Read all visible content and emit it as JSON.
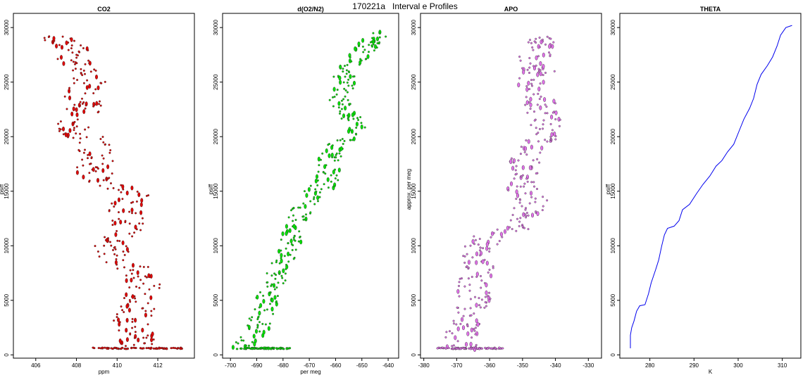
{
  "title": "170221a   Interval e Profiles",
  "colors": {
    "co2": "#e00000",
    "o2n2": "#00e000",
    "apo": "#e070e8",
    "theta": "#0000ee",
    "marker_edge": "#303030"
  },
  "chart_data": [
    {
      "type": "scatter",
      "title": "CO2",
      "xlabel": "ppm",
      "ylabel": "psiff",
      "xlim": [
        404.9,
        413.8
      ],
      "ylim": [
        -300,
        31300
      ],
      "xticks": [
        406,
        408,
        410,
        412
      ],
      "yticks": [
        0,
        5000,
        10000,
        15000,
        20000,
        25000,
        30000
      ],
      "profile": [
        [
          406.6,
          29200
        ],
        [
          407.6,
          28500
        ],
        [
          407.9,
          27500
        ],
        [
          408.1,
          26300
        ],
        [
          408.9,
          25200
        ],
        [
          407.9,
          24000
        ],
        [
          408.6,
          22900
        ],
        [
          408.0,
          21800
        ],
        [
          407.9,
          20600
        ],
        [
          408.8,
          19600
        ],
        [
          409.1,
          18200
        ],
        [
          408.7,
          17100
        ],
        [
          409.1,
          16000
        ],
        [
          410.8,
          14800
        ],
        [
          410.4,
          13400
        ],
        [
          410.6,
          12200
        ],
        [
          410.3,
          11000
        ],
        [
          409.6,
          9900
        ],
        [
          410.1,
          8700
        ],
        [
          411.1,
          7500
        ],
        [
          411.3,
          6300
        ],
        [
          411.1,
          5100
        ],
        [
          410.9,
          3800
        ],
        [
          410.6,
          2700
        ],
        [
          411.1,
          1600
        ],
        [
          411.0,
          800
        ]
      ],
      "spread": 0.9,
      "surface": {
        "y": 600,
        "x_range": [
          408.8,
          413.2
        ]
      }
    },
    {
      "type": "scatter",
      "title": "d(O2/N2)",
      "xlabel": "per meg",
      "ylabel": "psiff",
      "xlim": [
        -703,
        -636
      ],
      "ylim": [
        -300,
        31300
      ],
      "xticks": [
        -700,
        -690,
        -680,
        -670,
        -660,
        -650,
        -640
      ],
      "yticks": [
        0,
        5000,
        10000,
        15000,
        20000,
        25000,
        30000
      ],
      "profile": [
        [
          -697,
          600
        ],
        [
          -690,
          1800
        ],
        [
          -689,
          3000
        ],
        [
          -687,
          4300
        ],
        [
          -685,
          5700
        ],
        [
          -683,
          7000
        ],
        [
          -681,
          8200
        ],
        [
          -679,
          9500
        ],
        [
          -677,
          10700
        ],
        [
          -675,
          12000
        ],
        [
          -672,
          13400
        ],
        [
          -670,
          14700
        ],
        [
          -663,
          15800
        ],
        [
          -663,
          16900
        ],
        [
          -662,
          18200
        ],
        [
          -659,
          19500
        ],
        [
          -652,
          20700
        ],
        [
          -654,
          21900
        ],
        [
          -659,
          23200
        ],
        [
          -657,
          24500
        ],
        [
          -657,
          25600
        ],
        [
          -654,
          26800
        ],
        [
          -649,
          27900
        ],
        [
          -646,
          28700
        ],
        [
          -641,
          29500
        ]
      ],
      "spread": 4.5,
      "surface": {
        "y": 600,
        "x_range": [
          -698,
          -677
        ]
      }
    },
    {
      "type": "scatter",
      "title": "APO",
      "xlabel": "",
      "ylabel": "approx. per meg",
      "xlim": [
        -381,
        -326
      ],
      "ylim": [
        -300,
        31300
      ],
      "xticks": [
        -380,
        -370,
        -360,
        -350,
        -340,
        -330
      ],
      "yticks": [
        0,
        5000,
        10000,
        15000,
        20000,
        25000,
        30000
      ],
      "profile": [
        [
          -368,
          600
        ],
        [
          -369,
          1600
        ],
        [
          -368,
          2700
        ],
        [
          -366,
          3800
        ],
        [
          -364,
          5000
        ],
        [
          -366,
          6200
        ],
        [
          -363,
          7400
        ],
        [
          -364,
          8600
        ],
        [
          -363,
          9800
        ],
        [
          -361,
          10800
        ],
        [
          -348,
          11700
        ],
        [
          -350,
          12900
        ],
        [
          -347,
          14100
        ],
        [
          -350,
          15300
        ],
        [
          -349,
          16500
        ],
        [
          -349,
          17700
        ],
        [
          -347,
          18900
        ],
        [
          -343,
          20100
        ],
        [
          -343,
          21300
        ],
        [
          -344,
          22500
        ],
        [
          -346,
          23700
        ],
        [
          -348,
          24900
        ],
        [
          -345,
          26100
        ],
        [
          -346,
          27300
        ],
        [
          -344,
          28500
        ],
        [
          -343,
          29300
        ]
      ],
      "spread": 5.0,
      "surface": {
        "y": 600,
        "x_range": [
          -376,
          -356
        ]
      }
    },
    {
      "type": "line",
      "title": "THETA",
      "xlabel": "K",
      "ylabel": "psiff",
      "xlim": [
        273.2,
        314.2
      ],
      "ylim": [
        -300,
        31300
      ],
      "xticks": [
        280,
        290,
        300,
        310
      ],
      "yticks": [
        0,
        5000,
        10000,
        15000,
        20000,
        25000,
        30000
      ],
      "points": [
        [
          275.6,
          600
        ],
        [
          275.6,
          1800
        ],
        [
          275.9,
          2500
        ],
        [
          276.4,
          3100
        ],
        [
          277.0,
          4000
        ],
        [
          277.7,
          4500
        ],
        [
          278.9,
          4600
        ],
        [
          279.7,
          5600
        ],
        [
          280.3,
          6600
        ],
        [
          281.3,
          7800
        ],
        [
          282.0,
          8700
        ],
        [
          282.7,
          10000
        ],
        [
          283.3,
          11000
        ],
        [
          284.0,
          11600
        ],
        [
          285.5,
          11800
        ],
        [
          286.6,
          12300
        ],
        [
          287.4,
          13300
        ],
        [
          289.0,
          13800
        ],
        [
          290.6,
          14800
        ],
        [
          292.0,
          15600
        ],
        [
          293.6,
          16400
        ],
        [
          295.0,
          17300
        ],
        [
          296.3,
          17800
        ],
        [
          297.6,
          18600
        ],
        [
          299.0,
          19300
        ],
        [
          300.2,
          20500
        ],
        [
          301.3,
          21600
        ],
        [
          302.6,
          22600
        ],
        [
          303.5,
          23500
        ],
        [
          304.3,
          24800
        ],
        [
          305.2,
          25700
        ],
        [
          306.6,
          26500
        ],
        [
          307.8,
          27300
        ],
        [
          308.8,
          28300
        ],
        [
          309.6,
          29300
        ],
        [
          310.8,
          30000
        ],
        [
          312.2,
          30200
        ]
      ]
    }
  ]
}
